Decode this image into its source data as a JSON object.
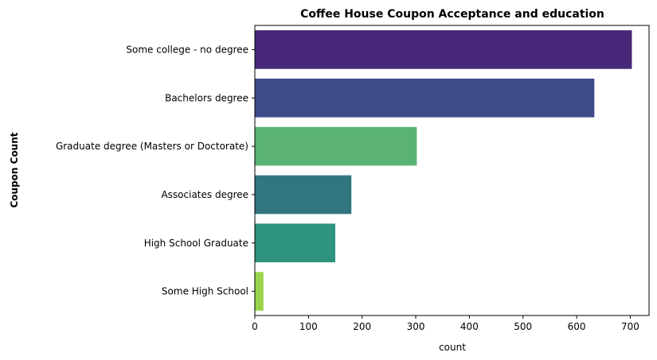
{
  "chart_data": {
    "type": "bar",
    "orientation": "horizontal",
    "title": "Coffee House Coupon Acceptance and education",
    "xlabel": "count",
    "ylabel": "Coupon Count",
    "xlim": [
      0,
      735
    ],
    "xticks": [
      0,
      100,
      200,
      300,
      400,
      500,
      600,
      700
    ],
    "grid": false,
    "categories": [
      "Some college - no degree",
      "Bachelors degree",
      "Graduate degree (Masters or Doctorate)",
      "Associates degree",
      "High School Graduate",
      "Some High School"
    ],
    "values": [
      703,
      633,
      302,
      180,
      150,
      16
    ],
    "colors": [
      "#482878",
      "#3e4a89",
      "#5ab375",
      "#31767f",
      "#2e9480",
      "#9bd44b"
    ]
  }
}
